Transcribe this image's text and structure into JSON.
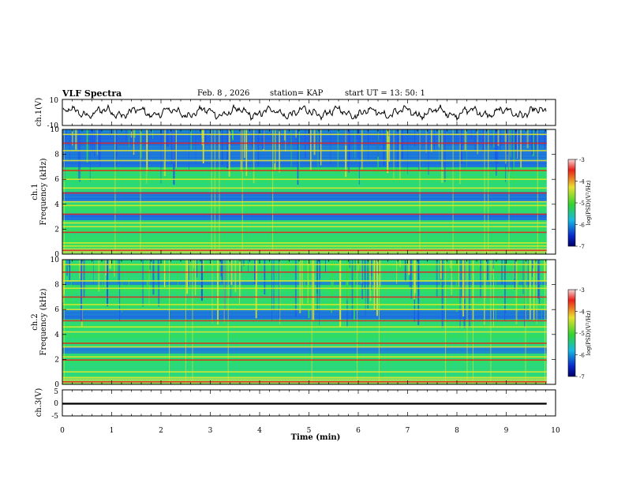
{
  "header": {
    "title": "VLF Spectra",
    "date": "Feb. 8 , 2026",
    "station": "station= KAP",
    "start_time": "start UT = 13: 50: 1"
  },
  "colors": {
    "line": "#000000",
    "spectrogram_base": "#22d2a8",
    "spectrogram_blue": "#1b50f0",
    "spectrogram_green": "#38e23a",
    "spectrogram_yellow": "#e6e62c",
    "spectrogram_red": "#e8201a"
  },
  "colorbar": {
    "label": "log(PSD)(V²/Hz)",
    "ticks": [
      "-3",
      "-4",
      "-5",
      "-6",
      "-7"
    ],
    "stops": [
      "#f4d6d6",
      "#e8201a",
      "#e8e030",
      "#32d232",
      "#18b8e0",
      "#0a28c8",
      "#000066"
    ]
  },
  "chart_data": [
    {
      "type": "line",
      "panel": "ch1",
      "ylabel": "ch.1(V)",
      "ylim": [
        -10,
        10
      ],
      "ytick_labels": [
        "10",
        "-10"
      ],
      "xlim": [
        0,
        10
      ],
      "x_end": 9.82,
      "description_series": "waveform",
      "series": [
        {
          "name": "ch.1 waveform",
          "baseline": 0,
          "amplitude": 4.5
        }
      ]
    },
    {
      "type": "heatmap",
      "panel": "ch1-spectrogram",
      "ylabel_line1": "ch.1",
      "ylabel_line2": "Frequency (kHz)",
      "ylim": [
        0,
        10
      ],
      "ytick_labels": [
        "10",
        "8",
        "6",
        "4",
        "2",
        "0"
      ],
      "xlim": [
        0,
        10
      ],
      "x_end": 9.82,
      "zlim": [
        -7,
        -3
      ],
      "line_freqs_khz": [
        0.3,
        0.65,
        0.9,
        1.75,
        2.2,
        2.5,
        3.2,
        3.9,
        4.2,
        4.9,
        5.3,
        6.0,
        6.7,
        7.5,
        8.3,
        8.9,
        9.6
      ]
    },
    {
      "type": "heatmap",
      "panel": "ch2-spectrogram",
      "ylabel_line1": "ch.2",
      "ylabel_line2": "Frequency (kHz)",
      "ylim": [
        0,
        10
      ],
      "ytick_labels": [
        "10",
        "8",
        "6",
        "4",
        "2",
        "0"
      ],
      "xlim": [
        0,
        10
      ],
      "x_end": 9.82,
      "zlim": [
        -7,
        -3
      ],
      "line_freqs_khz": [
        0.2,
        0.55,
        1.0,
        1.95,
        2.2,
        3.0,
        3.3,
        4.2,
        4.6,
        5.1,
        6.0,
        6.4,
        7.0,
        7.7,
        8.3,
        9.0,
        9.6
      ]
    },
    {
      "type": "line",
      "panel": "ch3",
      "ylabel": "ch.3(V)",
      "ylim": [
        -5,
        5
      ],
      "ytick_labels": [
        "5",
        "0",
        "-5"
      ],
      "xlim": [
        0,
        10
      ],
      "x_end": 9.82,
      "series": [
        {
          "name": "ch.3 signal",
          "baseline": -0.3,
          "amplitude": 0.35
        }
      ]
    }
  ],
  "xaxis": {
    "label": "Time (min)",
    "ticks": [
      "0",
      "1",
      "2",
      "3",
      "4",
      "5",
      "6",
      "7",
      "8",
      "9",
      "10"
    ]
  }
}
